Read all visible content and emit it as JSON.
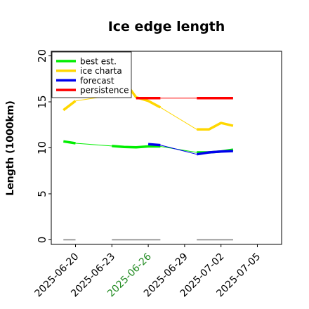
{
  "chart_data": {
    "type": "line",
    "title": "Ice edge length",
    "xlabel": "",
    "ylabel": "Length (1000km)",
    "ylim": [
      -0.5,
      20.5
    ],
    "xlim": [
      "2025-06-18",
      "2025-07-07"
    ],
    "yticks": [
      0,
      5,
      10,
      15,
      20
    ],
    "xticks": [
      "2025-06-20",
      "2025-06-23",
      "2025-06-26",
      "2025-06-29",
      "2025-07-02",
      "2025-07-05"
    ],
    "highlight_tick": "2025-06-26",
    "legend_position": "top-left",
    "grid": false,
    "series": [
      {
        "name": "best est.",
        "color": "#00ee00",
        "segments": [
          [
            [
              "2025-06-19",
              10.7
            ],
            [
              "2025-06-20",
              10.5
            ]
          ],
          [
            [
              "2025-06-20",
              10.5
            ],
            [
              "2025-06-23",
              10.2
            ]
          ],
          [
            [
              "2025-06-23",
              10.2
            ],
            [
              "2025-06-24",
              10.1
            ],
            [
              "2025-06-25",
              10.05
            ],
            [
              "2025-06-26",
              10.15
            ],
            [
              "2025-06-27",
              10.15
            ]
          ],
          [
            [
              "2025-06-27",
              10.15
            ],
            [
              "2025-06-30",
              9.5
            ]
          ],
          [
            [
              "2025-06-30",
              9.5
            ],
            [
              "2025-07-01",
              9.5
            ],
            [
              "2025-07-02",
              9.6
            ],
            [
              "2025-07-03",
              9.8
            ]
          ]
        ]
      },
      {
        "name": "ice charta",
        "color": "#ffd700",
        "segments": [
          [
            [
              "2025-06-19",
              14.1
            ],
            [
              "2025-06-20",
              15.1
            ]
          ],
          [
            [
              "2025-06-20",
              15.1
            ],
            [
              "2025-06-23",
              15.7
            ]
          ],
          [
            [
              "2025-06-23",
              15.7
            ],
            [
              "2025-06-24",
              17.3
            ],
            [
              "2025-06-25",
              15.5
            ],
            [
              "2025-06-26",
              15.1
            ],
            [
              "2025-06-27",
              14.4
            ]
          ],
          [
            [
              "2025-06-27",
              14.4
            ],
            [
              "2025-06-30",
              12.0
            ]
          ],
          [
            [
              "2025-06-30",
              12.0
            ],
            [
              "2025-07-01",
              12.0
            ],
            [
              "2025-07-02",
              12.7
            ],
            [
              "2025-07-03",
              12.4
            ]
          ]
        ]
      },
      {
        "name": "forecast",
        "color": "#0000ee",
        "segments": [
          [
            [
              "2025-06-26",
              10.4
            ],
            [
              "2025-06-27",
              10.3
            ]
          ],
          [
            [
              "2025-06-27",
              10.3
            ],
            [
              "2025-06-30",
              9.3
            ]
          ],
          [
            [
              "2025-06-30",
              9.3
            ],
            [
              "2025-07-01",
              9.5
            ],
            [
              "2025-07-02",
              9.6
            ],
            [
              "2025-07-03",
              9.65
            ]
          ]
        ]
      },
      {
        "name": "persistence",
        "color": "#ff0000",
        "segments": [
          [
            [
              "2025-06-25",
              15.4
            ],
            [
              "2025-06-26",
              15.4
            ],
            [
              "2025-06-27",
              15.4
            ]
          ],
          [
            [
              "2025-06-27",
              15.4
            ],
            [
              "2025-06-30",
              15.4
            ]
          ],
          [
            [
              "2025-06-30",
              15.4
            ],
            [
              "2025-07-01",
              15.4
            ],
            [
              "2025-07-02",
              15.4
            ],
            [
              "2025-07-03",
              15.4
            ]
          ]
        ]
      }
    ],
    "availability_bars": [
      [
        "2025-06-19",
        "2025-06-20"
      ],
      [
        "2025-06-23",
        "2025-06-27"
      ],
      [
        "2025-06-30",
        "2025-07-03"
      ]
    ]
  }
}
